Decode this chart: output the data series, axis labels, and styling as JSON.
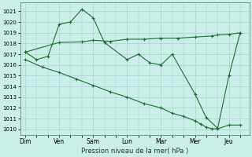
{
  "bg_color": "#cceee8",
  "grid_color": "#aacccc",
  "line_color": "#1a6e2e",
  "title": "Pression niveau de la mer( hPa )",
  "ylim": [
    1009.5,
    1021.8
  ],
  "yticks": [
    1010,
    1011,
    1012,
    1013,
    1014,
    1015,
    1016,
    1017,
    1018,
    1019,
    1020,
    1021
  ],
  "xlabel_days": [
    "Dim",
    "Ven",
    "Sam",
    "Lun",
    "Mar",
    "Mer",
    "Jeu"
  ],
  "x_tick_positions": [
    0,
    1,
    2,
    3,
    4,
    5,
    6
  ],
  "xlim": [
    -0.15,
    6.6
  ],
  "line1_x": [
    0,
    0.33,
    0.67,
    1.0,
    1.33,
    1.67,
    2.0,
    2.33,
    3.0,
    3.33,
    3.67,
    4.0,
    4.33,
    5.0,
    5.33,
    5.67,
    6.0,
    6.33
  ],
  "line1_y": [
    1017.2,
    1016.5,
    1016.8,
    1019.8,
    1020.0,
    1021.2,
    1020.4,
    1018.1,
    1016.5,
    1017.0,
    1016.2,
    1016.0,
    1017.0,
    1013.3,
    1011.1,
    1010.1,
    1015.0,
    1019.0
  ],
  "line2_x": [
    0,
    1.0,
    1.67,
    2.0,
    2.5,
    3.0,
    3.5,
    4.0,
    4.5,
    5.0,
    5.5,
    5.67,
    6.0,
    6.33
  ],
  "line2_y": [
    1017.2,
    1018.1,
    1018.15,
    1018.3,
    1018.2,
    1018.4,
    1018.4,
    1018.5,
    1018.5,
    1018.6,
    1018.7,
    1018.8,
    1018.85,
    1019.0
  ],
  "line3_x": [
    0,
    0.5,
    1.0,
    1.5,
    2.0,
    2.5,
    3.0,
    3.5,
    4.0,
    4.33,
    4.67,
    5.0,
    5.17,
    5.33,
    5.5,
    5.67,
    6.0,
    6.33
  ],
  "line3_y": [
    1016.5,
    1015.8,
    1015.3,
    1014.7,
    1014.1,
    1013.5,
    1013.0,
    1012.4,
    1012.0,
    1011.5,
    1011.2,
    1010.8,
    1010.5,
    1010.2,
    1010.05,
    1010.05,
    1010.4,
    1010.4
  ]
}
